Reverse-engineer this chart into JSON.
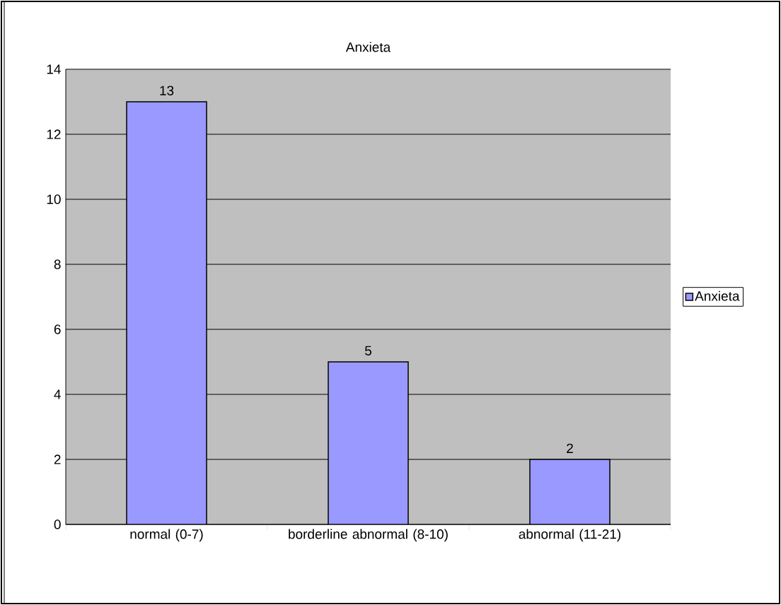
{
  "chart_data": {
    "type": "bar",
    "title": "Anxieta",
    "categories": [
      "normal (0-7)",
      "borderline abnormal (8-10)",
      "abnormal (11-21)"
    ],
    "series": [
      {
        "name": "Anxieta",
        "color": "#9999ff",
        "values": [
          13,
          5,
          2
        ]
      }
    ],
    "ylim": [
      0,
      14
    ],
    "yticks": [
      0,
      2,
      4,
      6,
      8,
      10,
      12,
      14
    ],
    "grid": "y",
    "legend": "right",
    "data_labels": true
  }
}
